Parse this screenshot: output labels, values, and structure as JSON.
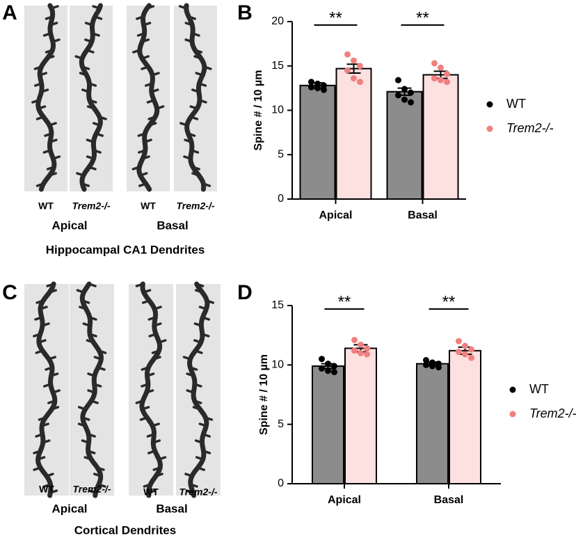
{
  "figure": {
    "panels": [
      {
        "letter": "A",
        "image_labels": [
          "WT",
          "Trem2-/-",
          "WT",
          "Trem2-/-"
        ],
        "groups": [
          "Apical",
          "Basal"
        ],
        "caption": "Hippocampal CA1 Dendrites"
      },
      {
        "letter": "C",
        "image_labels": [
          "WT",
          "Trem2-/-",
          "WT",
          "Trem2-/-"
        ],
        "groups": [
          "Apical",
          "Basal"
        ],
        "caption": "Cortical Dendrites"
      }
    ]
  },
  "chart_data": [
    {
      "panel": "B",
      "type": "bar",
      "ylabel": "Spine # / 10 µm",
      "categories": [
        "Apical",
        "Basal"
      ],
      "ylim": [
        0,
        20
      ],
      "yticks": [
        0,
        5,
        10,
        15,
        20
      ],
      "significance": [
        "**",
        "**"
      ],
      "series": [
        {
          "name": "WT",
          "color": "#000000",
          "bar_color": "#8c8c8c",
          "values": [
            12.8,
            12.1
          ],
          "errors": [
            0.3,
            0.4
          ],
          "points": [
            [
              13.2,
              13.0,
              12.8,
              12.6,
              12.5,
              12.3
            ],
            [
              13.4,
              12.4,
              12.0,
              11.7,
              11.2,
              10.9
            ]
          ]
        },
        {
          "name": "Trem2-/-",
          "color": "#f08080",
          "bar_color": "#fde0e0",
          "values": [
            14.7,
            14.0
          ],
          "errors": [
            0.5,
            0.4
          ],
          "points": [
            [
              16.3,
              15.6,
              15.0,
              14.5,
              13.6,
              13.2
            ],
            [
              15.3,
              14.8,
              14.1,
              13.6,
              13.4,
              13.2
            ]
          ]
        }
      ]
    },
    {
      "panel": "D",
      "type": "bar",
      "ylabel": "Spine # / 10 µm",
      "categories": [
        "Apical",
        "Basal"
      ],
      "ylim": [
        0,
        15
      ],
      "yticks": [
        0,
        5,
        10,
        15
      ],
      "significance": [
        "**",
        "**"
      ],
      "series": [
        {
          "name": "WT",
          "color": "#000000",
          "bar_color": "#8c8c8c",
          "values": [
            9.9,
            10.1
          ],
          "errors": [
            0.2,
            0.15
          ],
          "points": [
            [
              10.5,
              10.1,
              9.9,
              9.7,
              9.5,
              9.4
            ],
            [
              10.4,
              10.2,
              10.1,
              10.0,
              9.9,
              9.8
            ]
          ]
        },
        {
          "name": "Trem2-/-",
          "color": "#f08080",
          "bar_color": "#fde0e0",
          "values": [
            11.4,
            11.2
          ],
          "errors": [
            0.3,
            0.3
          ],
          "points": [
            [
              12.1,
              11.7,
              11.4,
              11.2,
              11.0,
              10.9
            ],
            [
              12.0,
              11.6,
              11.3,
              11.1,
              10.9,
              10.6
            ]
          ]
        }
      ]
    }
  ]
}
